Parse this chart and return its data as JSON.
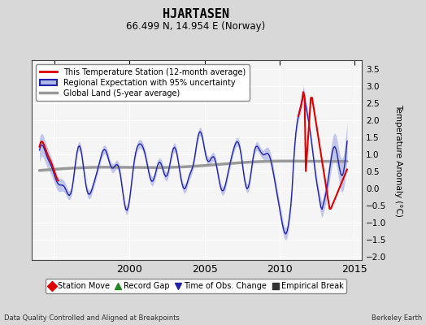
{
  "title": "HJARTASEN",
  "subtitle": "66.499 N, 14.954 E (Norway)",
  "ylabel": "Temperature Anomaly (°C)",
  "xlabel_bottom_left": "Data Quality Controlled and Aligned at Breakpoints",
  "xlabel_bottom_right": "Berkeley Earth",
  "xlim": [
    1993.5,
    2015.5
  ],
  "ylim": [
    -2.1,
    3.75
  ],
  "yticks": [
    -2,
    -1.5,
    -1,
    -0.5,
    0,
    0.5,
    1,
    1.5,
    2,
    2.5,
    3,
    3.5
  ],
  "xticks": [
    1995,
    2000,
    2005,
    2010,
    2015
  ],
  "xticklabels": [
    "",
    "2000",
    "2005",
    "2010",
    "2015"
  ],
  "background_color": "#d8d8d8",
  "plot_bg_color": "#f5f5f5",
  "grid_color": "#ffffff",
  "regional_color": "#2222aa",
  "regional_fill_color": "#b0b8e8",
  "station_color": "#dd0000",
  "global_color": "#999999",
  "legend_items": [
    {
      "label": "This Temperature Station (12-month average)",
      "color": "#dd0000",
      "lw": 2
    },
    {
      "label": "Regional Expectation with 95% uncertainty",
      "color": "#2222aa",
      "lw": 2
    },
    {
      "label": "Global Land (5-year average)",
      "color": "#999999",
      "lw": 2
    }
  ],
  "bottom_legend_items": [
    {
      "label": "Station Move",
      "color": "#dd0000",
      "marker": "D"
    },
    {
      "label": "Record Gap",
      "color": "#228822",
      "marker": "^"
    },
    {
      "label": "Time of Obs. Change",
      "color": "#2222aa",
      "marker": "v"
    },
    {
      "label": "Empirical Break",
      "color": "#333333",
      "marker": "s"
    }
  ]
}
